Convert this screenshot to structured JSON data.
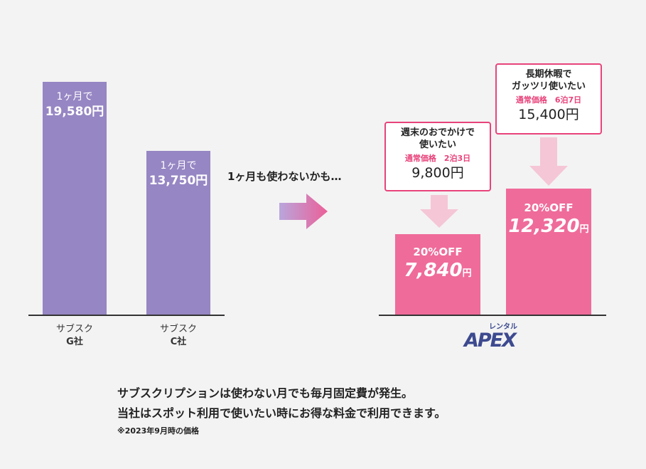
{
  "chart_data": [
    {
      "type": "bar",
      "categories": [
        "サブスク G社",
        "サブスク C社"
      ],
      "category_lines": [
        [
          "サブスク",
          "G社"
        ],
        [
          "サブスク",
          "C社"
        ]
      ],
      "series": [
        {
          "values": [
            19580,
            13750
          ]
        }
      ],
      "labels": [
        {
          "prefix": "1ヶ月で",
          "price": "19,580円"
        },
        {
          "prefix": "1ヶ月で",
          "price": "13,750円"
        }
      ],
      "colors": [
        "#9686c3",
        "#9686c3"
      ]
    },
    {
      "type": "bar",
      "categories": [
        "週末のおでかけで使いたい",
        "長期休暇でガッツリ使いたい"
      ],
      "series": [
        {
          "values": [
            7840,
            12320
          ]
        }
      ],
      "discount_label": "20%OFF",
      "bars": [
        {
          "callout_title_lines": [
            "週末のおでかけで",
            "使いたい"
          ],
          "callout_sub": "通常価格　2泊3日",
          "callout_price": "9,800円",
          "regular_value": 9800,
          "discounted_number": "7,840",
          "unit": "円"
        },
        {
          "callout_title_lines": [
            "長期休暇で",
            "ガッツリ使いたい"
          ],
          "callout_sub": "通常価格　6泊7日",
          "callout_price": "15,400円",
          "regular_value": 15400,
          "discounted_number": "12,320",
          "unit": "円"
        }
      ],
      "colors": [
        "#ef6b9a",
        "#ef6b9a"
      ]
    }
  ],
  "middle_text": "1ヶ月も使わないかも…",
  "logo": {
    "kana": "レンタル",
    "word": "APEX"
  },
  "footer": {
    "line1": "サブスクリプションは使わない月でも毎月固定費が発生。",
    "line2": "当社はスポット利用で使いたい時にお得な料金で利用できます。",
    "note": "※2023年9月時の価格"
  }
}
